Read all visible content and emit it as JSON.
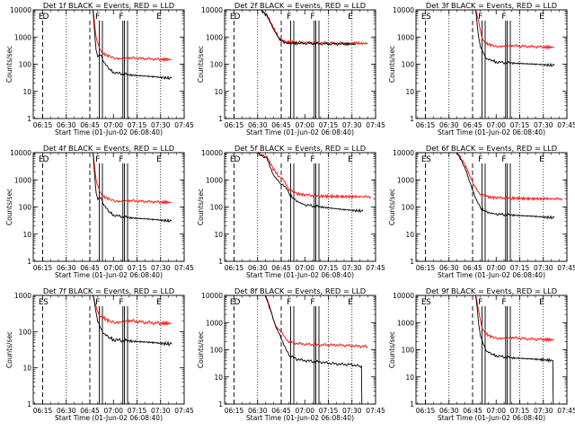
{
  "figure": {
    "ylabel": "Counts/sec",
    "x_ticks": [
      "06:15",
      "06:30",
      "06:45",
      "07:00",
      "07:15",
      "07:30",
      "07:45"
    ],
    "xlabel": "Start Time (01-Jun-02 06:08:40)",
    "y_ticks": [
      "1",
      "10",
      "100",
      "1000",
      "10000"
    ],
    "colors": {
      "events": "#000000",
      "lld": "#ff0000",
      "axes": "#000000"
    }
  },
  "chart_data": [
    {
      "type": "line",
      "title": "Det 1f BLACK = Events, RED = LLD",
      "xlabel": "Start Time (01-Jun-02 06:08:40)",
      "ylabel": "Counts/sec",
      "xlim": [
        9,
        105
      ],
      "ylim": [
        1,
        10000
      ],
      "yscale": "log",
      "dashed": [
        15,
        45
      ],
      "dotted": [
        30,
        75,
        90
      ],
      "solid": [
        51,
        53,
        66,
        67,
        69
      ],
      "labels": [
        {
          "text": "E",
          "x": 14
        },
        {
          "text": "D",
          "x": 17
        },
        {
          "text": "F",
          "x": 50
        },
        {
          "text": "F",
          "x": 65
        },
        {
          "text": "E",
          "x": 89
        }
      ],
      "series": [
        {
          "name": "Events",
          "x": [
            9,
            20,
            27,
            33,
            37,
            44,
            47,
            48,
            49,
            50,
            52,
            54,
            57,
            60,
            70,
            85,
            97
          ],
          "y": [
            10000,
            10000,
            10000,
            10000,
            10000,
            10000,
            10000,
            1500,
            300,
            180,
            220,
            120,
            70,
            50,
            40,
            35,
            30
          ]
        },
        {
          "name": "LLD",
          "x": [
            9,
            20,
            27,
            33,
            37,
            44,
            47,
            49,
            51,
            53,
            57,
            63,
            70,
            80,
            90,
            97
          ],
          "y": [
            10000,
            10000,
            10000,
            10000,
            10000,
            10000,
            10000,
            1000,
            450,
            250,
            200,
            160,
            170,
            160,
            150,
            150
          ]
        }
      ]
    },
    {
      "type": "line",
      "title": "Det 2f BLACK = Events, RED = LLD",
      "xlabel": "Start Time (01-Jun-02 06:08:40)",
      "ylabel": "Counts/sec",
      "xlim": [
        9,
        105
      ],
      "ylim": [
        1,
        10000
      ],
      "yscale": "log",
      "dashed": [
        15,
        45
      ],
      "dotted": [
        30,
        75,
        90
      ],
      "solid": [
        51,
        53,
        66,
        67,
        69
      ],
      "labels": [
        {
          "text": "E",
          "x": 14
        },
        {
          "text": "D",
          "x": 17
        },
        {
          "text": "F",
          "x": 50
        },
        {
          "text": "F",
          "x": 65
        },
        {
          "text": "E",
          "x": 89
        }
      ],
      "series": [
        {
          "name": "Events",
          "x": [
            9,
            20,
            25,
            28,
            32,
            36,
            40,
            44,
            48,
            55,
            65,
            75,
            85,
            92
          ],
          "y": [
            10000,
            10000,
            10000,
            10000,
            10000,
            6000,
            2000,
            800,
            600,
            590,
            580,
            560,
            550,
            550
          ]
        },
        {
          "name": "LLD",
          "x": [
            9,
            20,
            25,
            28,
            32,
            36,
            40,
            44,
            48,
            55,
            65,
            75,
            85,
            92,
            100
          ],
          "y": [
            10000,
            10000,
            10000,
            10000,
            10000,
            6500,
            2200,
            850,
            650,
            630,
            620,
            600,
            590,
            590,
            580
          ]
        }
      ]
    },
    {
      "type": "line",
      "title": "Det 3f BLACK = Events, RED = LLD",
      "xlabel": "Start Time (01-Jun-02 06:08:40)",
      "ylabel": "Counts/sec",
      "xlim": [
        9,
        105
      ],
      "ylim": [
        1,
        10000
      ],
      "yscale": "log",
      "dashed": [
        15,
        45
      ],
      "dotted": [
        30,
        75,
        90
      ],
      "solid": [
        51,
        53,
        66,
        67,
        69
      ],
      "labels": [
        {
          "text": "E",
          "x": 14
        },
        {
          "text": "S",
          "x": 17
        },
        {
          "text": "F",
          "x": 50
        },
        {
          "text": "F",
          "x": 65
        },
        {
          "text": "E",
          "x": 89
        }
      ],
      "series": [
        {
          "name": "Events",
          "x": [
            9,
            20,
            27,
            33,
            37,
            44,
            47,
            48,
            49,
            50,
            52,
            54,
            57,
            60,
            70,
            85,
            97
          ],
          "y": [
            10000,
            10000,
            10000,
            10000,
            10000,
            10000,
            10000,
            2500,
            800,
            400,
            250,
            160,
            140,
            120,
            110,
            100,
            90
          ]
        },
        {
          "name": "LLD",
          "x": [
            9,
            20,
            27,
            33,
            37,
            44,
            47,
            49,
            51,
            53,
            57,
            63,
            70,
            80,
            90,
            97
          ],
          "y": [
            10000,
            10000,
            10000,
            10000,
            10000,
            10000,
            10000,
            3500,
            1000,
            600,
            500,
            450,
            480,
            450,
            430,
            420
          ]
        }
      ]
    },
    {
      "type": "line",
      "title": "Det 4f BLACK = Events, RED = LLD",
      "xlabel": "Start Time (01-Jun-02 06:08:40)",
      "ylabel": "Counts/sec",
      "xlim": [
        9,
        105
      ],
      "ylim": [
        1,
        10000
      ],
      "yscale": "log",
      "dashed": [
        15,
        45
      ],
      "dotted": [
        30,
        75,
        90
      ],
      "solid": [
        51,
        53,
        66,
        67,
        69
      ],
      "labels": [
        {
          "text": "E",
          "x": 14
        },
        {
          "text": "D",
          "x": 17
        },
        {
          "text": "F",
          "x": 50
        },
        {
          "text": "F",
          "x": 65
        },
        {
          "text": "E",
          "x": 89
        }
      ],
      "series": [
        {
          "name": "Events",
          "x": [
            9,
            20,
            27,
            33,
            37,
            44,
            47,
            48,
            49,
            50,
            52,
            54,
            57,
            60,
            70,
            85,
            97
          ],
          "y": [
            10000,
            10000,
            10000,
            10000,
            10000,
            10000,
            10000,
            1500,
            300,
            180,
            220,
            120,
            70,
            50,
            40,
            35,
            30
          ]
        },
        {
          "name": "LLD",
          "x": [
            9,
            20,
            27,
            33,
            37,
            44,
            47,
            49,
            51,
            53,
            57,
            63,
            70,
            80,
            90,
            97
          ],
          "y": [
            10000,
            10000,
            10000,
            10000,
            10000,
            10000,
            10000,
            1000,
            450,
            250,
            200,
            160,
            170,
            160,
            150,
            150
          ]
        }
      ]
    },
    {
      "type": "line",
      "title": "Det 5f BLACK = Events, RED = LLD",
      "xlabel": "Start Time (01-Jun-02 06:08:40)",
      "ylabel": "Counts/sec",
      "xlim": [
        9,
        105
      ],
      "ylim": [
        1,
        10000
      ],
      "yscale": "log",
      "dashed": [
        15,
        45
      ],
      "dotted": [
        30,
        75,
        90
      ],
      "solid": [
        51,
        53,
        66,
        67,
        69
      ],
      "labels": [
        {
          "text": "E",
          "x": 14
        },
        {
          "text": "D",
          "x": 17
        },
        {
          "text": "F",
          "x": 50
        },
        {
          "text": "F",
          "x": 65
        },
        {
          "text": "E",
          "x": 89
        }
      ],
      "series": [
        {
          "name": "Events",
          "x": [
            9,
            20,
            25,
            30,
            36,
            40,
            44,
            46,
            48,
            50,
            53,
            56,
            60,
            70,
            85,
            97
          ],
          "y": [
            10000,
            10000,
            10000,
            10000,
            6000,
            1500,
            800,
            700,
            500,
            300,
            200,
            150,
            120,
            100,
            80,
            70
          ]
        },
        {
          "name": "LLD",
          "x": [
            9,
            20,
            25,
            30,
            36,
            40,
            44,
            46,
            48,
            50,
            53,
            56,
            60,
            70,
            85,
            97,
            102
          ],
          "y": [
            10000,
            10000,
            10000,
            10000,
            7000,
            2500,
            1200,
            1000,
            700,
            450,
            350,
            300,
            280,
            250,
            240,
            240,
            230
          ]
        }
      ]
    },
    {
      "type": "line",
      "title": "Det 6f BLACK = Events, RED = LLD",
      "xlabel": "Start Time (01-Jun-02 06:08:40)",
      "ylabel": "Counts/sec",
      "xlim": [
        9,
        105
      ],
      "ylim": [
        1,
        10000
      ],
      "yscale": "log",
      "dashed": [
        15,
        45
      ],
      "dotted": [
        30,
        75,
        90
      ],
      "solid": [
        51,
        53,
        66,
        67,
        69
      ],
      "labels": [
        {
          "text": "E",
          "x": 14
        },
        {
          "text": "S",
          "x": 17
        },
        {
          "text": "F",
          "x": 50
        },
        {
          "text": "F",
          "x": 65
        },
        {
          "text": "E",
          "x": 89
        }
      ],
      "series": [
        {
          "name": "Events",
          "x": [
            9,
            20,
            25,
            30,
            35,
            40,
            43,
            46,
            48,
            50,
            53,
            56,
            60,
            70,
            85,
            97
          ],
          "y": [
            10000,
            10000,
            10000,
            10000,
            10000,
            3000,
            900,
            300,
            150,
            90,
            70,
            60,
            55,
            50,
            45,
            40
          ]
        },
        {
          "name": "LLD",
          "x": [
            9,
            20,
            25,
            30,
            35,
            40,
            43,
            46,
            48,
            50,
            53,
            56,
            60,
            70,
            85,
            97,
            102
          ],
          "y": [
            10000,
            10000,
            10000,
            10000,
            10000,
            4000,
            1500,
            600,
            400,
            300,
            260,
            230,
            220,
            210,
            200,
            200,
            195
          ]
        }
      ]
    },
    {
      "type": "line",
      "title": "Det 7f BLACK = Events, RED = LLD",
      "xlabel": "Start Time (01-Jun-02 06:08:40)",
      "ylabel": "Counts/sec",
      "xlim": [
        9,
        105
      ],
      "ylim": [
        1,
        1000
      ],
      "yscale": "log",
      "dashed": [
        15,
        45
      ],
      "dotted": [
        30,
        75,
        90
      ],
      "solid": [
        51,
        53,
        66,
        67,
        69
      ],
      "labels": [
        {
          "text": "E",
          "x": 14
        },
        {
          "text": "S",
          "x": 17
        },
        {
          "text": "F",
          "x": 50
        },
        {
          "text": "F",
          "x": 65
        },
        {
          "text": "E",
          "x": 89
        }
      ],
      "series": [
        {
          "name": "Events",
          "x": [
            9,
            20,
            27,
            33,
            37,
            44,
            47,
            48,
            49,
            50,
            52,
            54,
            57,
            60,
            70,
            85,
            97
          ],
          "y": [
            1000,
            1000,
            1000,
            1000,
            1000,
            1000,
            1000,
            600,
            300,
            180,
            120,
            90,
            70,
            60,
            55,
            50,
            45
          ]
        },
        {
          "name": "LLD",
          "x": [
            9,
            20,
            27,
            33,
            37,
            44,
            47,
            49,
            51,
            53,
            57,
            63,
            70,
            80,
            90,
            97
          ],
          "y": [
            1000,
            1000,
            1000,
            1000,
            1000,
            1000,
            1000,
            500,
            300,
            250,
            200,
            180,
            200,
            180,
            170,
            170
          ]
        }
      ]
    },
    {
      "type": "line",
      "title": "Det 8f BLACK = Events, RED = LLD",
      "xlabel": "Start Time (01-Jun-02 06:08:40)",
      "ylabel": "Counts/sec",
      "xlim": [
        9,
        105
      ],
      "ylim": [
        1,
        10000
      ],
      "yscale": "log",
      "dashed": [
        15,
        45
      ],
      "dotted": [
        30,
        75,
        90
      ],
      "solid": [
        51,
        53,
        66,
        67,
        69
      ],
      "labels": [
        {
          "text": "E",
          "x": 14
        },
        {
          "text": "D",
          "x": 17
        },
        {
          "text": "F",
          "x": 50
        },
        {
          "text": "F",
          "x": 65
        },
        {
          "text": "E",
          "x": 89
        }
      ],
      "series": [
        {
          "name": "Events",
          "x": [
            9,
            20,
            25,
            30,
            35,
            38,
            40,
            42,
            44,
            46,
            48,
            50,
            55,
            60,
            70,
            80,
            90,
            95,
            96,
            96.3
          ],
          "y": [
            10000,
            10000,
            10000,
            10000,
            10000,
            3000,
            1200,
            600,
            400,
            200,
            100,
            60,
            45,
            40,
            35,
            30,
            28,
            25,
            25,
            1
          ]
        },
        {
          "name": "LLD",
          "x": [
            9,
            20,
            25,
            30,
            35,
            38,
            40,
            42,
            44,
            46,
            48,
            50,
            55,
            60,
            70,
            80,
            90,
            100
          ],
          "y": [
            10000,
            10000,
            10000,
            10000,
            10000,
            3500,
            1400,
            700,
            500,
            350,
            250,
            200,
            170,
            160,
            150,
            150,
            140,
            130
          ]
        }
      ]
    },
    {
      "type": "line",
      "title": "Det 9f BLACK = Events, RED = LLD",
      "xlabel": "Start Time (01-Jun-02 06:08:40)",
      "ylabel": "Counts/sec",
      "xlim": [
        9,
        105
      ],
      "ylim": [
        1,
        10000
      ],
      "yscale": "log",
      "dashed": [
        15,
        45
      ],
      "dotted": [
        30,
        75,
        90
      ],
      "solid": [
        51,
        53,
        66,
        67,
        69
      ],
      "labels": [
        {
          "text": "E",
          "x": 14
        },
        {
          "text": "S",
          "x": 17
        },
        {
          "text": "F",
          "x": 50
        },
        {
          "text": "F",
          "x": 65
        },
        {
          "text": "E",
          "x": 89
        }
      ],
      "series": [
        {
          "name": "Events",
          "x": [
            9,
            20,
            27,
            33,
            37,
            44,
            47,
            48,
            49,
            50,
            52,
            54,
            57,
            60,
            70,
            85,
            96,
            96.3
          ],
          "y": [
            10000,
            10000,
            10000,
            10000,
            10000,
            10000,
            10000,
            3000,
            700,
            300,
            150,
            90,
            70,
            60,
            50,
            45,
            40,
            1
          ]
        },
        {
          "name": "LLD",
          "x": [
            9,
            20,
            27,
            33,
            37,
            44,
            47,
            49,
            51,
            53,
            57,
            63,
            70,
            80,
            90,
            97
          ],
          "y": [
            10000,
            10000,
            10000,
            10000,
            10000,
            10000,
            10000,
            2500,
            700,
            400,
            300,
            260,
            280,
            250,
            240,
            230
          ]
        }
      ]
    }
  ]
}
